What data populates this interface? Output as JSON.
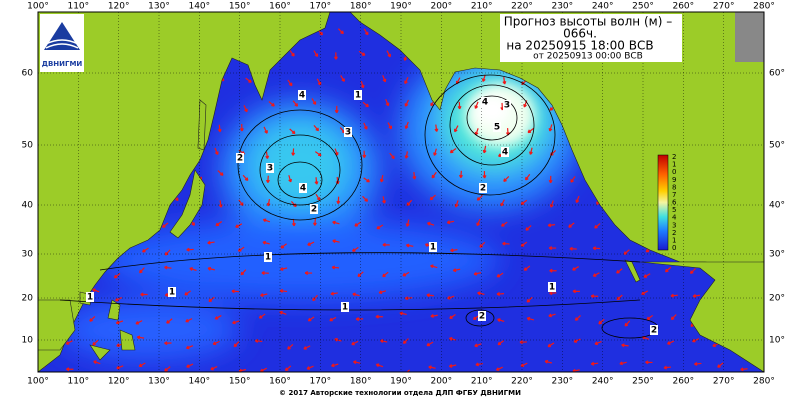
{
  "header": {
    "title_lines": [
      "Прогноз высоты волн (м) –",
      "066ч.",
      "на 20250915 18:00 ВСВ"
    ],
    "issued": "от 20250913 00:00 ВСВ",
    "logo": "ДВНИГМИ"
  },
  "map": {
    "lon_labels": [
      "100°",
      "110°",
      "120°",
      "130°",
      "140°",
      "150°",
      "160°",
      "170°",
      "180°",
      "190°",
      "200°",
      "210°",
      "220°",
      "230°",
      "240°",
      "250°",
      "260°",
      "270°",
      "280°"
    ],
    "lat_labels_left": [
      "60",
      "50",
      "40",
      "30",
      "20",
      "10"
    ],
    "lat_labels_right": [
      "60°",
      "50°",
      "40°",
      "30°",
      "20°",
      "10°"
    ],
    "colorbar_labels": [
      "2",
      "1",
      "0",
      "9",
      "8",
      "7",
      "6",
      "5",
      "4",
      "3",
      "2",
      "1",
      "0"
    ],
    "contour_labels": [
      "4",
      "1",
      "3",
      "2",
      "3",
      "4",
      "2",
      "4",
      "5",
      "3",
      "4",
      "2",
      "1",
      "1",
      "1",
      "1",
      "1",
      "2",
      "1",
      "2"
    ]
  },
  "footer": "© 2017 Авторские технологии отдела ДЛП ФГБУ ДВНИГМИ"
}
